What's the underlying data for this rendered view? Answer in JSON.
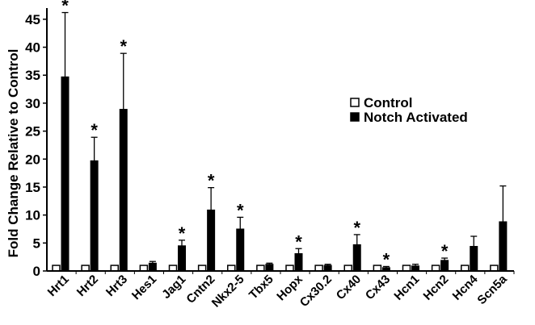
{
  "chart_data": {
    "type": "bar",
    "ylabel": "Fold Change Relative to Control",
    "ylim": [
      0,
      47
    ],
    "yticks": [
      0,
      5,
      10,
      15,
      20,
      25,
      30,
      35,
      40,
      45
    ],
    "categories": [
      "Hrt1",
      "Hrt2",
      "Hrt3",
      "Hes1",
      "Jag1",
      "Cntn2",
      "Nkx2-5",
      "Tbx5",
      "Hopx",
      "Cx30.2",
      "Cx40",
      "Cx43",
      "Hcn1",
      "Hcn2",
      "Hcn4",
      "Scn5a"
    ],
    "series": [
      {
        "name": "Control",
        "color": "#ffffff",
        "values": [
          1,
          1,
          1,
          1,
          1,
          1,
          1,
          1,
          1,
          1,
          1,
          1,
          1,
          1,
          1,
          1
        ]
      },
      {
        "name": "Notch Activated",
        "color": "#000000",
        "values": [
          34.7,
          19.7,
          28.9,
          1.4,
          4.5,
          10.9,
          7.5,
          1.2,
          3.1,
          1.0,
          4.7,
          0.6,
          0.9,
          1.9,
          4.4,
          8.8
        ],
        "errors": [
          11.5,
          4.2,
          10.0,
          0.3,
          1.0,
          4.0,
          2.1,
          0.2,
          0.9,
          0.2,
          1.8,
          0.2,
          0.3,
          0.4,
          1.8,
          6.4
        ]
      }
    ],
    "significance_marker": "*",
    "significant": [
      "Hrt1",
      "Hrt2",
      "Hrt3",
      "Jag1",
      "Cntn2",
      "Nkx2-5",
      "Hopx",
      "Cx40",
      "Cx43",
      "Hcn2"
    ],
    "legend": {
      "position": "right",
      "entries": [
        "Control",
        "Notch Activated"
      ]
    },
    "grid": false
  }
}
